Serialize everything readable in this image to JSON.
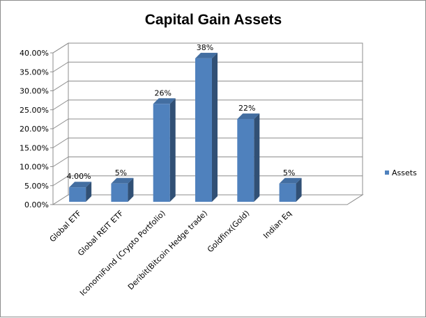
{
  "chart_data": {
    "type": "bar",
    "title": "Capital Gain Assets",
    "categories": [
      "Global ETF",
      "Global REIT ETF",
      "IconomiFund (Crypto Portfolio)",
      "Deribit(Bitcoin Hedge trade)",
      "Goldfinx(Gold)",
      "Indian Eq"
    ],
    "series": [
      {
        "name": "Assets",
        "values": [
          4,
          5,
          26,
          38,
          22,
          5
        ],
        "data_labels": [
          "4.00%",
          "5%",
          "26%",
          "38%",
          "22%",
          "5%"
        ],
        "color": "#4f81bd"
      }
    ],
    "y_ticks": [
      "0.00%",
      "5.00%",
      "10.00%",
      "15.00%",
      "20.00%",
      "25.00%",
      "30.00%",
      "35.00%",
      "40.00%"
    ],
    "ylim": [
      0,
      40
    ],
    "legend_position": "right",
    "grid": true
  }
}
